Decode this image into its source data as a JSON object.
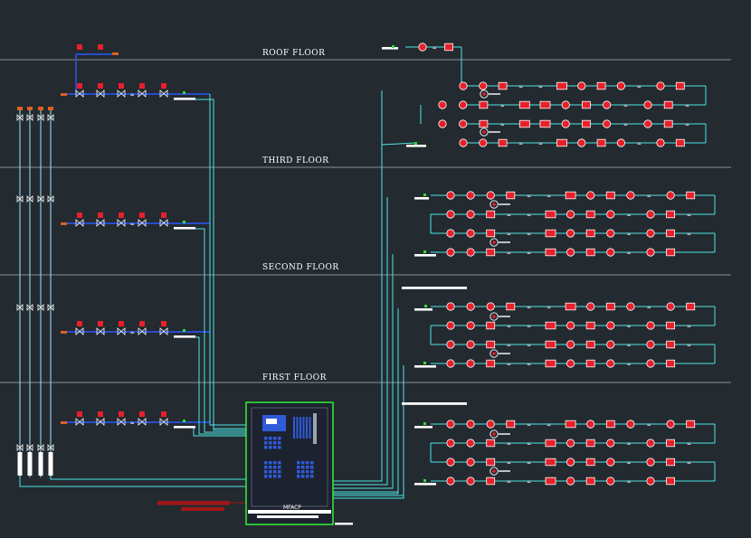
{
  "floors": [
    {
      "label": "ROOF FLOOR"
    },
    {
      "label": "THIRD FLOOR"
    },
    {
      "label": "SECOND FLOOR"
    },
    {
      "label": "FIRST FLOOR"
    }
  ],
  "panel": {
    "label": "MFACP"
  },
  "colors": {
    "background": "#232a30",
    "floor_line": "#8a8f94",
    "wire": "#4ee6e6",
    "device_red": "#e8202a",
    "device_outline": "#ffffff",
    "panel_border": "#33ff33",
    "panel_fill": "#1c2230",
    "panel_blue": "#2f5bd9",
    "accent_green": "#33dd33",
    "accent_orange": "#e06020",
    "dark_red_bar": "#a01818"
  },
  "icons": {
    "detector": "circle-detector-icon",
    "manual_call_point": "square-call-point-icon",
    "sounder": "sounder-icon",
    "sprinkler": "sprinkler-head-icon",
    "flow_switch": "valve-icon"
  }
}
